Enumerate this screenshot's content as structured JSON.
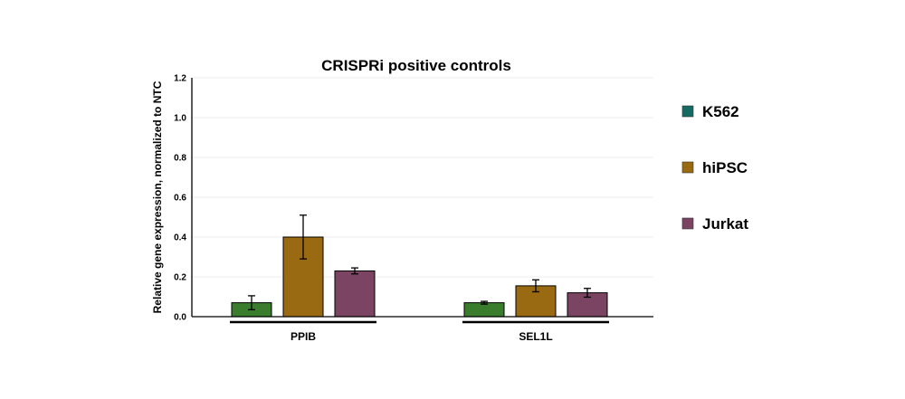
{
  "chart_data": {
    "type": "bar",
    "title": "CRISPRi positive controls",
    "xlabel": "",
    "ylabel": "Relative gene expression,  normalized to NTC",
    "ylim": [
      0,
      1.2
    ],
    "yticks": [
      "0.0",
      "0.2",
      "0.4",
      "0.6",
      "0.8",
      "1.0",
      "1.2"
    ],
    "categories": [
      "PPIB",
      "SEL1L"
    ],
    "grid": true,
    "legend_position": "right",
    "series": [
      {
        "name": "K562",
        "values": [
          0.07,
          0.07
        ],
        "errors": [
          0.035,
          0.007
        ],
        "color": "#3a7d2c",
        "legend_color": "#156b63"
      },
      {
        "name": "hiPSC",
        "values": [
          0.4,
          0.155
        ],
        "errors": [
          0.11,
          0.03
        ],
        "color": "#9a6a12",
        "legend_color": "#9a6a12"
      },
      {
        "name": "Jurkat",
        "values": [
          0.23,
          0.12
        ],
        "errors": [
          0.015,
          0.022
        ],
        "color": "#7a4462",
        "legend_color": "#7a4462"
      }
    ]
  }
}
